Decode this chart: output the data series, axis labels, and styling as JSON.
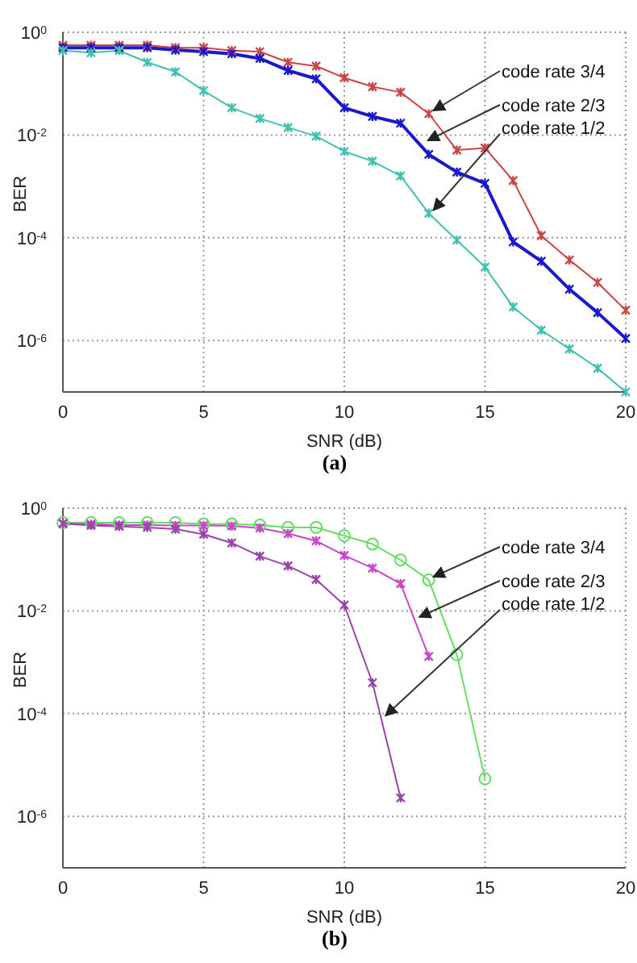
{
  "chart_data": [
    {
      "type": "line",
      "title": "(a)",
      "xlabel": "SNR (dB)",
      "ylabel": "BER",
      "log": "y",
      "grid": true,
      "marker": "cross",
      "line_style": "solid",
      "xlim": [
        0,
        20
      ],
      "xticks": [
        0,
        5,
        10,
        15,
        20
      ],
      "ylim": [
        1e-07,
        1
      ],
      "yticks": [
        {
          "value": 1,
          "label": "10$^{0}$"
        },
        {
          "value": 0.01,
          "label": "10$^{-2}$"
        },
        {
          "value": 0.0001,
          "label": "10$^{-4}$"
        },
        {
          "value": 1e-06,
          "label": "10$^{-6}$"
        }
      ],
      "series": [
        {
          "color": "#cc4444",
          "x": [
            0,
            1,
            2,
            3,
            4,
            5,
            6,
            7,
            8,
            9,
            10,
            11,
            12,
            13,
            14,
            15,
            16,
            17,
            18,
            19,
            20
          ],
          "values": [
            0.56,
            0.56,
            0.56,
            0.56,
            0.5,
            0.5,
            0.44,
            0.42,
            0.26,
            0.22,
            0.13,
            0.087,
            0.068,
            0.026,
            0.0051,
            0.0056,
            0.0013,
            0.00011,
            3.7e-05,
            1.35e-05,
            3.9e-06
          ]
        },
        {
          "color": "#1a1acc",
          "x": [
            0,
            1,
            2,
            3,
            4,
            5,
            6,
            7,
            8,
            9,
            10,
            11,
            12,
            13,
            14,
            15,
            16,
            17,
            18,
            19,
            20
          ],
          "values": [
            0.5,
            0.5,
            0.5,
            0.5,
            0.45,
            0.42,
            0.38,
            0.31,
            0.18,
            0.124,
            0.034,
            0.023,
            0.017,
            0.0042,
            0.0019,
            0.00115,
            8.3e-05,
            3.5e-05,
            1e-05,
            3.5e-06,
            1.1e-06
          ]
        },
        {
          "color": "#40c0b0",
          "x": [
            0,
            1,
            2,
            3,
            4,
            5,
            6,
            7,
            8,
            9,
            10,
            11,
            12,
            13,
            14,
            15,
            16,
            17,
            18,
            19,
            20
          ],
          "values": [
            0.44,
            0.4,
            0.44,
            0.26,
            0.17,
            0.073,
            0.034,
            0.021,
            0.014,
            0.0095,
            0.0048,
            0.0031,
            0.0016,
            0.0003,
            9e-05,
            2.7e-05,
            4.5e-06,
            1.6e-06,
            6.9e-07,
            2.9e-07,
            1e-07
          ]
        }
      ],
      "annotations": [
        {
          "text": "code rate 3/4",
          "x": 13,
          "y": 0.026
        },
        {
          "text": "code rate 2/3",
          "x": 12.8,
          "y": 0.0068
        },
        {
          "text": "code rate 1/2",
          "x": 13,
          "y": 0.0003
        }
      ]
    },
    {
      "type": "line",
      "title": "(b)",
      "xlabel": "SNR (dB)",
      "ylabel": "BER",
      "log": "y",
      "grid": true,
      "marker": "cross",
      "line_style": "solid",
      "xlim": [
        0,
        20
      ],
      "xticks": [
        0,
        5,
        10,
        15,
        20
      ],
      "ylim": [
        1e-07,
        1
      ],
      "yticks": [
        {
          "value": 1,
          "label": "10$^{0}$"
        },
        {
          "value": 0.01,
          "label": "10$^{-2}$"
        },
        {
          "value": 0.0001,
          "label": "10$^{-4}$"
        },
        {
          "value": 1e-06,
          "label": "10$^{-6}$"
        }
      ],
      "series": [
        {
          "color": "#66dd66",
          "marker": "circle",
          "x": [
            0,
            1,
            2,
            3,
            4,
            5,
            6,
            7,
            8,
            9,
            10,
            11,
            12,
            13,
            14,
            15
          ],
          "values": [
            0.52,
            0.52,
            0.52,
            0.52,
            0.52,
            0.49,
            0.49,
            0.47,
            0.42,
            0.42,
            0.29,
            0.2,
            0.098,
            0.04,
            0.0014,
            5.4e-06
          ]
        },
        {
          "color": "#cc44cc",
          "x": [
            0,
            1,
            2,
            3,
            4,
            5,
            6,
            7,
            8,
            9,
            10,
            11,
            12,
            13
          ],
          "values": [
            0.5,
            0.49,
            0.47,
            0.47,
            0.46,
            0.46,
            0.45,
            0.41,
            0.32,
            0.23,
            0.12,
            0.068,
            0.034,
            0.0013
          ]
        },
        {
          "color": "#9944aa",
          "x": [
            0,
            1,
            2,
            3,
            4,
            5,
            6,
            7,
            8,
            9,
            10,
            11,
            12
          ],
          "values": [
            0.5,
            0.46,
            0.44,
            0.42,
            0.39,
            0.31,
            0.21,
            0.116,
            0.075,
            0.041,
            0.013,
            0.0004,
            2.3e-06
          ]
        }
      ],
      "annotations": [
        {
          "text": "code rate 3/4",
          "x": 13,
          "y": 0.04
        },
        {
          "text": "code rate 2/3",
          "x": 12.5,
          "y": 0.0066
        },
        {
          "text": "code rate 1/2",
          "x": 11.3,
          "y": 8e-05
        }
      ]
    }
  ]
}
